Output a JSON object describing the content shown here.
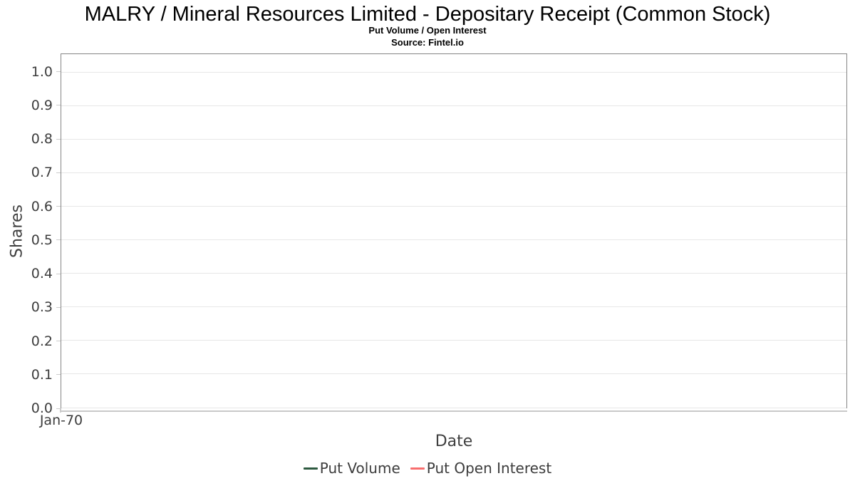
{
  "chart_data": {
    "type": "line",
    "title": "MALRY / Mineral Resources Limited - Depositary Receipt (Common Stock)",
    "subtitle": "Put Volume / Open Interest",
    "source": "Source: Fintel.io",
    "xlabel": "Date",
    "ylabel": "Shares",
    "x_ticks": [
      "Jan-70"
    ],
    "y_ticks": [
      "0.0",
      "0.1",
      "0.2",
      "0.3",
      "0.4",
      "0.5",
      "0.6",
      "0.7",
      "0.8",
      "0.9",
      "1.0"
    ],
    "ylim": [
      0,
      1.054
    ],
    "xlim_label": "Jan-70",
    "grid": "horizontal",
    "legend_position": "bottom",
    "plot_empty": true,
    "series": [
      {
        "name": "Put Volume",
        "color": "#2d5a40",
        "x": [],
        "values": []
      },
      {
        "name": "Put Open Interest",
        "color": "#f86e6e",
        "x": [],
        "values": []
      }
    ],
    "colors": {
      "plot_border": "#858585",
      "gridline": "#e7e7e7",
      "tick_text": "#3d3d3d",
      "axis_title_text": "#3f3f3f",
      "title_text": "#000000"
    }
  }
}
